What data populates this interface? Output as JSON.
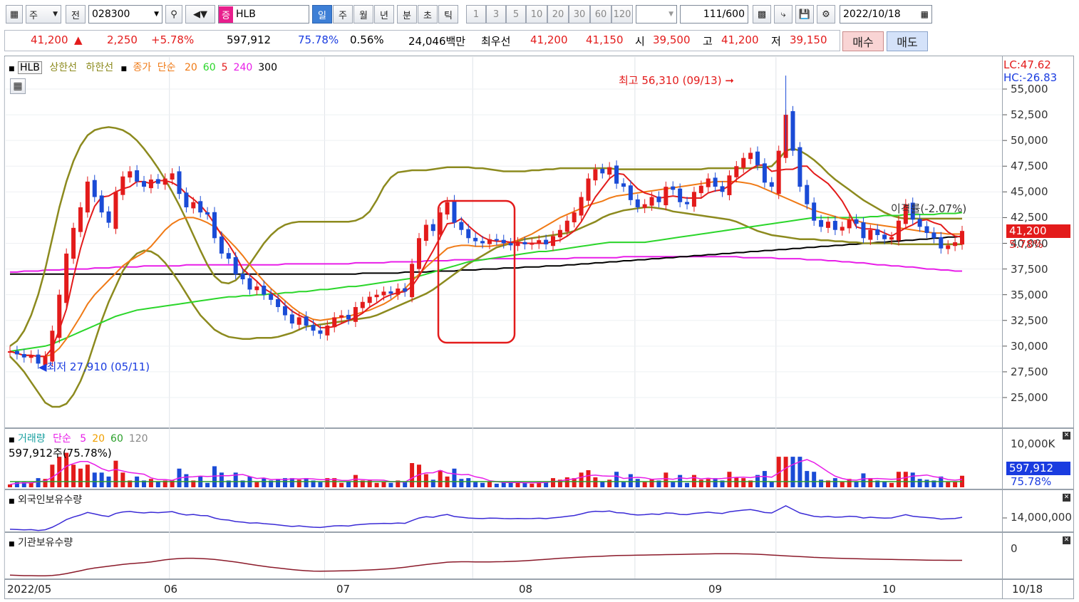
{
  "toolbar": {
    "mode": "주",
    "view": "전",
    "code": "028300",
    "type_badge": "증",
    "name": "HLB",
    "periods": [
      "일",
      "주",
      "월",
      "년",
      "분",
      "초",
      "틱"
    ],
    "active_period": "일",
    "intervals": [
      "1",
      "3",
      "5",
      "10",
      "20",
      "30",
      "60",
      "120"
    ],
    "count": "111",
    "total": "/600",
    "date": "2022/10/18"
  },
  "quote": {
    "price": "41,200",
    "change": "2,250",
    "change_pct": "+5.78%",
    "volume": "597,912",
    "vol_ratio": "75.78%",
    "turnover": "0.56%",
    "amount": "24,046백만",
    "best_label": "최우선",
    "ask": "41,200",
    "bid": "41,150",
    "open_label": "시",
    "open": "39,500",
    "high_label": "고",
    "high": "41,200",
    "low_label": "저",
    "low": "39,150",
    "buy_button": "매수",
    "sell_button": "매도"
  },
  "legend": {
    "name": "HLB",
    "upper": "상한선",
    "lower": "하한선",
    "close": "종가",
    "simple": "단순",
    "ma_list": [
      "20",
      "60",
      "5",
      "240",
      "300"
    ],
    "ma_colors": [
      "#f07a16",
      "#2bd62b",
      "#e31b1b",
      "#e81ee8",
      "#000000"
    ]
  },
  "annotations": {
    "high_label": "최고 56,310 (09/13)",
    "low_label": "최저 27,910 (05/11)",
    "disparity": "이격률(-2.07%)"
  },
  "price_scale": {
    "lc": "LC:47.62",
    "hc": "HC:-26.83",
    "ticks": [
      "55,000",
      "52,500",
      "50,000",
      "47,500",
      "45,000",
      "42,500",
      "40,000",
      "37,500",
      "35,000",
      "32,500",
      "30,000",
      "27,500",
      "25,000"
    ],
    "current_price": "41,200",
    "current_pct": "5.78%"
  },
  "volume_panel": {
    "title": "거래량",
    "simple": "단순",
    "ma_list": [
      "5",
      "20",
      "60",
      "120"
    ],
    "ma_colors": [
      "#e81ee8",
      "#f0a000",
      "#2ba02b",
      "#888888"
    ],
    "info": "597,912주(75.78%)",
    "scale_top": "10,000K",
    "current": "597,912",
    "current_pct": "75.78%"
  },
  "foreign_panel": {
    "title": "외국인보유수량",
    "tick": "14,000,000"
  },
  "inst_panel": {
    "title": "기관보유수량",
    "tick": "0"
  },
  "x_axis": {
    "labels": [
      "2022/05",
      "06",
      "07",
      "08",
      "09",
      "10"
    ],
    "end_label": "10/18"
  },
  "colors": {
    "up": "#e31b1b",
    "down": "#1a4bd6",
    "band": "#8c8a1e"
  },
  "chart_data": {
    "type": "candlestick",
    "first_date": "2022-05-02",
    "last_date": "2022-10-18",
    "ylim": [
      23000,
      57500
    ],
    "high": {
      "value": 56310,
      "date": "09/13"
    },
    "low": {
      "value": 27910,
      "date": "05/11"
    },
    "close": [
      29500,
      29200,
      28900,
      29100,
      28300,
      29000,
      31500,
      35000,
      39000,
      41500,
      43500,
      46000,
      44500,
      43000,
      42000,
      45000,
      46500,
      47000,
      46000,
      45500,
      46200,
      45800,
      46300,
      46800,
      44800,
      43500,
      44000,
      43000,
      42800,
      40500,
      39000,
      38500,
      37000,
      36500,
      35500,
      35800,
      35000,
      34500,
      33800,
      33000,
      32200,
      32800,
      32000,
      31500,
      31200,
      32000,
      32800,
      33000,
      32600,
      33800,
      34300,
      34800,
      35000,
      35300,
      35100,
      35600,
      35300,
      38000,
      40500,
      41800,
      41200,
      43000,
      44000,
      42000,
      41300,
      40500,
      40200,
      40000,
      40400,
      40300,
      40000,
      39800,
      40100,
      39900,
      40000,
      40300,
      39900,
      40700,
      41300,
      42200,
      43000,
      44500,
      46300,
      47200,
      46800,
      47400,
      45800,
      45500,
      44200,
      43500,
      43800,
      44500,
      44000,
      45500,
      45200,
      44000,
      43800,
      45000,
      45600,
      46300,
      45500,
      45000,
      46600,
      47500,
      48300,
      48800,
      47600,
      45900,
      45500,
      49000,
      52500,
      49000,
      45500,
      43800,
      42200,
      41600,
      42100,
      41300,
      41600,
      42300,
      41900,
      40500,
      41300,
      40800,
      40400,
      40600,
      42200,
      43800,
      42300,
      41600,
      41000,
      40500,
      39500,
      39800,
      40100,
      41200
    ],
    "ma5": [
      29500,
      29300,
      29100,
      29100,
      29000,
      29000,
      29800,
      31600,
      33600,
      36700,
      39500,
      41800,
      43600,
      44500,
      44600,
      45000,
      45300,
      45500,
      46000,
      46000,
      45800,
      46100,
      46100,
      45900,
      45500,
      44800,
      44300,
      43700,
      42900,
      41900,
      40800,
      39900,
      38800,
      37500,
      36900,
      36300,
      35600,
      35200,
      34700,
      34000,
      33400,
      33000,
      32700,
      32300,
      31800,
      31800,
      31900,
      32200,
      32500,
      32800,
      33200,
      33800,
      34200,
      34700,
      35000,
      35200,
      35300,
      35800,
      36800,
      38100,
      39300,
      40600,
      41900,
      42000,
      42400,
      41700,
      41100,
      40600,
      40300,
      40200,
      40200,
      40100,
      40100,
      40000,
      40000,
      40000,
      40000,
      40200,
      40300,
      40700,
      41200,
      42100,
      43300,
      44500,
      45400,
      46300,
      46800,
      46700,
      46000,
      45300,
      44900,
      44700,
      44400,
      44500,
      44600,
      44500,
      44400,
      44400,
      44400,
      44900,
      45100,
      45200,
      45600,
      46200,
      46700,
      47200,
      47600,
      47600,
      47000,
      47100,
      47200,
      47200,
      47500,
      47500,
      46800,
      46300,
      45800,
      45000,
      44100,
      42900,
      41600,
      41400,
      41400,
      41300,
      41000,
      40700,
      41100,
      41500,
      41800,
      42200,
      42300,
      42000,
      41800,
      41100,
      40700,
      40600
    ],
    "ma20": [
      29500,
      29300,
      29100,
      29100,
      29000,
      29000,
      29200,
      29800,
      30700,
      31800,
      32900,
      34100,
      35000,
      35700,
      36400,
      37100,
      37800,
      38300,
      38700,
      39100,
      39700,
      40500,
      41300,
      41900,
      42300,
      42500,
      42500,
      42300,
      42000,
      41600,
      41000,
      40300,
      39600,
      38800,
      37900,
      37100,
      36300,
      35600,
      35000,
      34400,
      33800,
      33300,
      32900,
      32600,
      32500,
      32600,
      32700,
      32800,
      32900,
      33100,
      33300,
      33500,
      33800,
      34100,
      34500,
      35000,
      35600,
      36300,
      37000,
      37700,
      38300,
      38900,
      39500,
      39700,
      39800,
      39800,
      39700,
      39700,
      39700,
      39800,
      39900,
      40100,
      40300,
      40600,
      40900,
      41300,
      41700,
      42100,
      42500,
      42800,
      43100,
      43400,
      43700,
      43900,
      44100,
      44400,
      44600,
      44700,
      44800,
      44900,
      45000,
      45100,
      45200,
      45300,
      45400,
      45500,
      45600,
      45700,
      45800,
      45900,
      46000,
      46000,
      46000,
      46000,
      45900,
      45800,
      45600,
      45300,
      45000,
      44700,
      44400,
      44100,
      43800,
      43500,
      43200,
      43000,
      42800,
      42600,
      42400,
      42300,
      42200,
      42000,
      41900,
      41800,
      41700,
      41600,
      41500,
      41400,
      41300,
      41200,
      41100,
      41000,
      41000,
      40900,
      40900,
      40900
    ],
    "ma60": [
      29500,
      29600,
      29700,
      29800,
      29900,
      30000,
      30200,
      30500,
      30800,
      31100,
      31400,
      31700,
      32000,
      32300,
      32600,
      32900,
      33100,
      33300,
      33500,
      33600,
      33700,
      33800,
      33900,
      34000,
      34100,
      34200,
      34300,
      34400,
      34500,
      34600,
      34700,
      34800,
      34800,
      34900,
      34900,
      35000,
      35000,
      35100,
      35100,
      35200,
      35200,
      35300,
      35300,
      35400,
      35500,
      35500,
      35600,
      35700,
      35800,
      35800,
      35900,
      36000,
      36100,
      36200,
      36300,
      36400,
      36500,
      36600,
      36800,
      37000,
      37200,
      37400,
      37600,
      37800,
      38000,
      38200,
      38300,
      38400,
      38500,
      38600,
      38700,
      38800,
      38900,
      39000,
      39100,
      39200,
      39200,
      39300,
      39400,
      39500,
      39600,
      39700,
      39800,
      39900,
      40000,
      40100,
      40100,
      40100,
      40100,
      40100,
      40100,
      40200,
      40300,
      40400,
      40500,
      40600,
      40700,
      40800,
      40900,
      41000,
      41100,
      41200,
      41300,
      41400,
      41500,
      41600,
      41700,
      41800,
      41900,
      42000,
      42100,
      42200,
      42300,
      42400,
      42500,
      42500,
      42500,
      42500,
      42500,
      42500,
      42500,
      42500,
      42600,
      42600,
      42700,
      42700,
      42700,
      42800,
      42800,
      42800,
      42800,
      42800,
      42900,
      42900,
      42900,
      43000
    ],
    "upper_band": [
      30000,
      30500,
      31500,
      33000,
      35000,
      37500,
      40500,
      43500,
      46000,
      48000,
      49500,
      50500,
      51000,
      51200,
      51300,
      51200,
      51000,
      50600,
      50000,
      49200,
      48300,
      47300,
      46200,
      45000,
      43700,
      42300,
      40800,
      39300,
      37900,
      36800,
      36200,
      36100,
      36400,
      37100,
      38000,
      39000,
      40000,
      40800,
      41400,
      41800,
      42000,
      42100,
      42100,
      42100,
      42100,
      42100,
      42100,
      42100,
      42100,
      42200,
      42500,
      43100,
      44200,
      45500,
      46400,
      46900,
      47000,
      47100,
      47100,
      47100,
      47200,
      47300,
      47400,
      47400,
      47400,
      47400,
      47300,
      47300,
      47200,
      47100,
      47000,
      47000,
      47000,
      47000,
      47100,
      47100,
      47200,
      47200,
      47300,
      47300,
      47300,
      47300,
      47300,
      47300,
      47300,
      47300,
      47200,
      47200,
      47200,
      47200,
      47200,
      47200,
      47200,
      47200,
      47200,
      47200,
      47200,
      47200,
      47200,
      47300,
      47300,
      47300,
      47300,
      47300,
      47300,
      47300,
      47400,
      47400,
      47500,
      48200,
      49000,
      49200,
      49000,
      48600,
      48100,
      47500,
      46800,
      46200,
      45700,
      45200,
      44700,
      44200,
      43800,
      43400,
      43000,
      42700,
      42500,
      42400,
      42400,
      42400,
      42400,
      42400,
      42400,
      42400,
      42400,
      42400
    ],
    "lower_band": [
      29000,
      28300,
      27500,
      26500,
      25500,
      24500,
      24100,
      24100,
      24400,
      25300,
      26600,
      28300,
      30400,
      32500,
      34300,
      35800,
      37300,
      38300,
      39000,
      39300,
      39200,
      38800,
      38100,
      37200,
      36200,
      35100,
      34000,
      33000,
      32300,
      31600,
      31200,
      30900,
      30800,
      30700,
      30700,
      30800,
      30800,
      30800,
      30900,
      31100,
      31300,
      31600,
      31900,
      32000,
      32100,
      32200,
      32300,
      32400,
      32500,
      32600,
      32700,
      32800,
      33000,
      33300,
      33600,
      33900,
      34200,
      34500,
      34800,
      35100,
      35500,
      36000,
      36500,
      37000,
      37500,
      38000,
      38400,
      38800,
      39200,
      39600,
      39800,
      40000,
      40200,
      40400,
      40500,
      40600,
      40700,
      40800,
      40900,
      41000,
      41200,
      41500,
      41800,
      42100,
      42500,
      42800,
      43000,
      43200,
      43300,
      43400,
      43500,
      43500,
      43400,
      43300,
      43100,
      43000,
      42900,
      42800,
      42700,
      42600,
      42500,
      42400,
      42300,
      42100,
      41800,
      41500,
      41200,
      41000,
      40800,
      40700,
      40600,
      40500,
      40400,
      40400,
      40400,
      40300,
      40300,
      40200,
      40200,
      40100,
      40100,
      40000,
      40000,
      40000,
      40000,
      40000,
      39900,
      39900,
      39900,
      39900,
      39900,
      39900,
      39900,
      39900,
      39900,
      39900
    ],
    "ma240": [
      37200,
      37200,
      37300,
      37300,
      37300,
      37400,
      37400,
      37400,
      37500,
      37500,
      37500,
      37500,
      37600,
      37600,
      37600,
      37700,
      37700,
      37700,
      37700,
      37800,
      37800,
      37800,
      37800,
      37800,
      37800,
      37900,
      37900,
      37900,
      37900,
      37900,
      37900,
      37900,
      37900,
      37900,
      37900,
      37900,
      37900,
      37900,
      37900,
      38000,
      38000,
      38000,
      38000,
      38000,
      38000,
      38000,
      38000,
      38000,
      38000,
      38100,
      38100,
      38100,
      38100,
      38100,
      38200,
      38200,
      38200,
      38200,
      38200,
      38300,
      38300,
      38300,
      38300,
      38400,
      38400,
      38400,
      38400,
      38400,
      38500,
      38500,
      38500,
      38500,
      38500,
      38500,
      38500,
      38500,
      38500,
      38500,
      38500,
      38500,
      38600,
      38600,
      38600,
      38600,
      38600,
      38600,
      38600,
      38700,
      38700,
      38700,
      38700,
      38700,
      38700,
      38700,
      38700,
      38700,
      38700,
      38700,
      38700,
      38700,
      38700,
      38700,
      38700,
      38700,
      38600,
      38600,
      38600,
      38600,
      38600,
      38500,
      38500,
      38500,
      38500,
      38400,
      38400,
      38400,
      38300,
      38300,
      38200,
      38200,
      38100,
      38100,
      38000,
      37900,
      37900,
      37800,
      37800,
      37700,
      37700,
      37600,
      37500,
      37500,
      37400,
      37400,
      37300,
      37300
    ],
    "ma300": [
      37000,
      37000,
      37000,
      37000,
      37000,
      37000,
      37000,
      37000,
      37000,
      37000,
      37000,
      37000,
      37000,
      37000,
      37000,
      37000,
      37000,
      37000,
      37000,
      37000,
      37000,
      37000,
      37000,
      37000,
      37000,
      37000,
      37000,
      37000,
      37000,
      37000,
      37000,
      37000,
      37000,
      37000,
      37000,
      37000,
      37000,
      37000,
      37000,
      37000,
      37000,
      37000,
      37000,
      37000,
      37000,
      37000,
      37000,
      37000,
      37000,
      37000,
      37100,
      37100,
      37100,
      37100,
      37100,
      37100,
      37200,
      37200,
      37200,
      37200,
      37300,
      37300,
      37300,
      37300,
      37400,
      37400,
      37400,
      37500,
      37500,
      37500,
      37600,
      37600,
      37600,
      37700,
      37700,
      37700,
      37800,
      37800,
      37800,
      37900,
      37900,
      38000,
      38000,
      38100,
      38100,
      38200,
      38200,
      38300,
      38300,
      38400,
      38400,
      38500,
      38500,
      38600,
      38600,
      38700,
      38700,
      38800,
      38800,
      38900,
      38900,
      39000,
      39000,
      39100,
      39100,
      39200,
      39200,
      39300,
      39300,
      39400,
      39400,
      39500,
      39500,
      39600,
      39600,
      39700,
      39700,
      39800,
      39800,
      39900,
      39900,
      40000,
      40000,
      40100,
      40100,
      40200,
      40200,
      40300,
      40300,
      40400,
      40400,
      40500,
      40500,
      40600,
      40600,
      40700
    ]
  }
}
